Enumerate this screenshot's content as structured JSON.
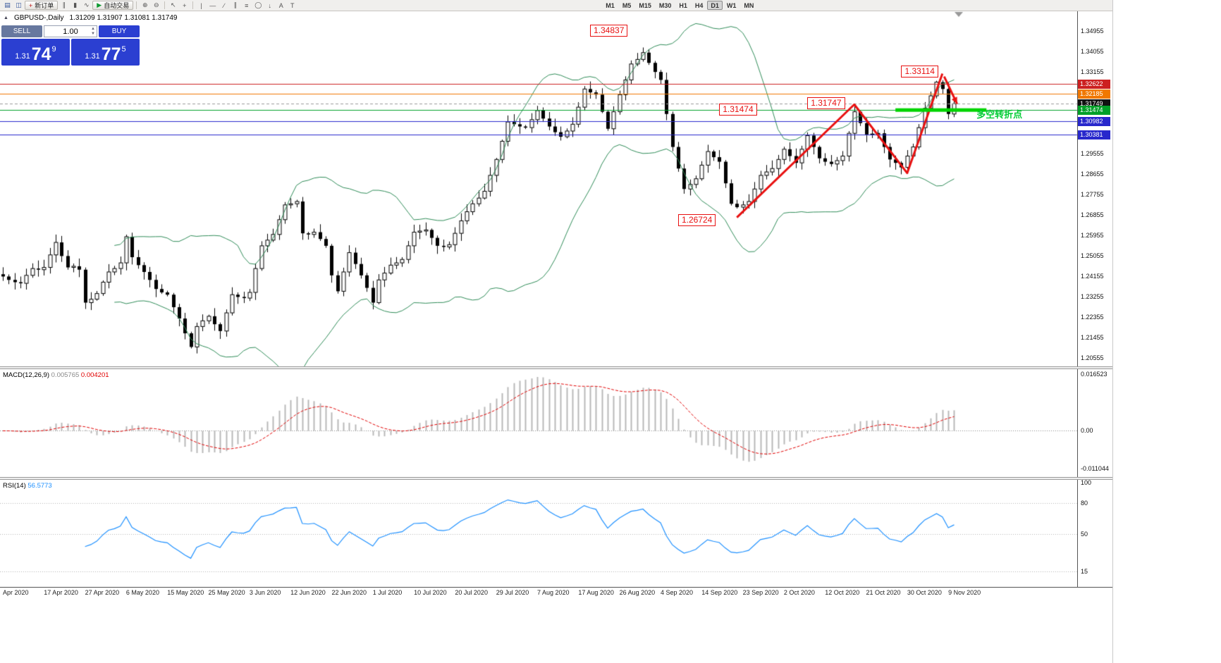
{
  "toolbar": {
    "items": [
      {
        "name": "charts-icon",
        "glyph": "▤",
        "color": "#33569b"
      },
      {
        "name": "profiles-icon",
        "glyph": "◫",
        "color": "#33569b"
      },
      {
        "name": "new-order-button",
        "label": "新订单",
        "glyph": "+",
        "color": "#bb1111",
        "button": true
      },
      {
        "name": "chart-bars-icon",
        "glyph": "∥",
        "color": "#555555"
      },
      {
        "name": "chart-candles-icon",
        "glyph": "▮",
        "color": "#555555"
      },
      {
        "name": "chart-line-icon",
        "glyph": "∿",
        "color": "#555555"
      },
      {
        "name": "autotrading-button",
        "label": "自动交易",
        "glyph": "▶",
        "color": "#0c9a30",
        "button": true
      },
      {
        "sep": true
      },
      {
        "name": "zoom-in-icon",
        "glyph": "⊕",
        "color": "#555555"
      },
      {
        "name": "zoom-out-icon",
        "glyph": "⊖",
        "color": "#555555"
      },
      {
        "sep": true
      },
      {
        "name": "cursor-icon",
        "glyph": "↖",
        "color": "#555555"
      },
      {
        "name": "crosshair-icon",
        "glyph": "+",
        "color": "#555555"
      },
      {
        "sep": true
      },
      {
        "name": "vertical-line-icon",
        "glyph": "|",
        "color": "#555555"
      },
      {
        "name": "horizontal-line-icon",
        "glyph": "—",
        "color": "#555555"
      },
      {
        "name": "trendline-icon",
        "glyph": "∕",
        "color": "#555555"
      },
      {
        "name": "equidistant-channel-icon",
        "glyph": "∥",
        "color": "#555555"
      },
      {
        "name": "fibonacci-icon",
        "glyph": "≡",
        "color": "#555555"
      },
      {
        "name": "shapes-icon",
        "glyph": "◯",
        "color": "#555555"
      },
      {
        "name": "arrows-icon",
        "glyph": "↓",
        "color": "#555555"
      },
      {
        "name": "text-icon",
        "glyph": "A",
        "color": "#555555"
      },
      {
        "name": "text-label-icon",
        "glyph": "T",
        "color": "#555555"
      },
      {
        "spacer": 430
      }
    ],
    "timeframes": [
      "M1",
      "M5",
      "M15",
      "M30",
      "H1",
      "H4",
      "D1",
      "W1",
      "MN"
    ],
    "active_timeframe": "D1"
  },
  "chart_header": {
    "symbol_period": "GBPUSD-,Daily",
    "ohlc": "1.31209 1.31907 1.31081 1.31749"
  },
  "one_click": {
    "sell_label": "SELL",
    "buy_label": "BUY",
    "volume": "1.00",
    "sell_price_small": "1.31",
    "sell_price_big": "74",
    "sell_price_sup": "9",
    "buy_price_small": "1.31",
    "buy_price_big": "77",
    "buy_price_sup": "5"
  },
  "indicators_text": {
    "macd_name": "MACD(12,26,9)",
    "macd_main": "0.005765",
    "macd_signal": "0.004201",
    "rsi_name": "RSI(14)",
    "rsi_value": "56.5773"
  },
  "price_axis": {
    "ticks": [
      "1.34955",
      "1.34055",
      "1.33155",
      "1.32255",
      "1.31355",
      "1.30455",
      "1.29555",
      "1.28655",
      "1.27755",
      "1.26855",
      "1.25955",
      "1.25055",
      "1.24155",
      "1.23255",
      "1.22355",
      "1.21455",
      "1.20555"
    ],
    "labels": [
      {
        "text": "1.32622",
        "value": 1.32622,
        "color": "#cc2020"
      },
      {
        "text": "1.32185",
        "value": 1.32185,
        "color": "#f07800"
      },
      {
        "text": "1.31749",
        "value": 1.31749,
        "color": "#111111"
      },
      {
        "text": "1.31474",
        "value": 1.31474,
        "color": "#00a028"
      },
      {
        "text": "1.30982",
        "value": 1.30982,
        "color": "#2828cc"
      },
      {
        "text": "1.30381",
        "value": 1.30381,
        "color": "#2828cc"
      }
    ]
  },
  "time_axis": {
    "bars_per_label": 7,
    "labels": [
      "Apr 2020",
      "17 Apr 2020",
      "27 Apr 2020",
      "6 May 2020",
      "15 May 2020",
      "25 May 2020",
      "3 Jun 2020",
      "12 Jun 2020",
      "22 Jun 2020",
      "1 Jul 2020",
      "10 Jul 2020",
      "20 Jul 2020",
      "29 Jul 2020",
      "7 Aug 2020",
      "17 Aug 2020",
      "26 Aug 2020",
      "4 Sep 2020",
      "14 Sep 2020",
      "23 Sep 2020",
      "2 Oct 2020",
      "12 Oct 2020",
      "21 Oct 2020",
      "30 Oct 2020",
      "9 Nov 2020"
    ]
  },
  "chart_data": {
    "type": "candlestick",
    "symbol": "GBPUSD-",
    "period": "Daily",
    "price_range": [
      1.20195,
      1.3582
    ],
    "closes": [
      1.2415,
      1.24,
      1.239,
      1.2385,
      1.242,
      1.245,
      1.2445,
      1.2455,
      1.251,
      1.2565,
      1.2505,
      1.2455,
      1.246,
      1.2445,
      1.23,
      1.2315,
      1.234,
      1.239,
      1.2435,
      1.245,
      1.2475,
      1.259,
      1.25,
      1.2465,
      1.2435,
      1.24,
      1.236,
      1.2345,
      1.2335,
      1.228,
      1.223,
      1.2165,
      1.2105,
      1.2195,
      1.222,
      1.224,
      1.2205,
      1.2175,
      1.2255,
      1.2335,
      1.2325,
      1.232,
      1.2345,
      1.245,
      1.255,
      1.2575,
      1.26,
      1.2665,
      1.273,
      1.2735,
      1.2745,
      1.2605,
      1.26,
      1.261,
      1.258,
      1.255,
      1.242,
      1.235,
      1.2435,
      1.252,
      1.247,
      1.242,
      1.2365,
      1.23,
      1.24,
      1.243,
      1.2465,
      1.2475,
      1.249,
      1.255,
      1.261,
      1.2615,
      1.262,
      1.2585,
      1.255,
      1.2545,
      1.2555,
      1.2605,
      1.266,
      1.27,
      1.2735,
      1.276,
      1.279,
      1.286,
      1.293,
      1.301,
      1.3095,
      1.3085,
      1.3075,
      1.307,
      1.3105,
      1.3145,
      1.311,
      1.3075,
      1.305,
      1.303,
      1.3055,
      1.3085,
      1.316,
      1.324,
      1.3225,
      1.3215,
      1.314,
      1.3065,
      1.314,
      1.3215,
      1.328,
      1.335,
      1.337,
      1.34,
      1.3355,
      1.3315,
      1.328,
      1.313,
      1.2985,
      1.289,
      1.28,
      1.282,
      1.2845,
      1.2905,
      1.2965,
      1.294,
      1.292,
      1.2825,
      1.2735,
      1.272,
      1.273,
      1.2745,
      1.28,
      1.286,
      1.2875,
      1.289,
      1.293,
      1.2975,
      1.2945,
      1.2915,
      1.2975,
      1.3035,
      1.2985,
      1.2935,
      1.292,
      1.291,
      1.2925,
      1.2945,
      1.3045,
      1.314,
      1.309,
      1.304,
      1.3042,
      1.3045,
      1.2985,
      1.293,
      1.2915,
      1.2895,
      1.2945,
      1.2985,
      1.307,
      1.3155,
      1.321,
      1.327,
      1.324,
      1.313,
      1.3175
    ],
    "hlines": [
      {
        "value": 1.32622,
        "color": "#cc2020",
        "width": 1
      },
      {
        "value": 1.32185,
        "color": "#f07800",
        "width": 1
      },
      {
        "value": 1.31749,
        "color": "#999999",
        "width": 1,
        "dash": true
      },
      {
        "value": 1.31474,
        "color": "#00a028",
        "width": 1
      },
      {
        "value": 1.30982,
        "color": "#2828cc",
        "width": 1
      },
      {
        "value": 1.30381,
        "color": "#2828cc",
        "width": 1
      }
    ],
    "indicators": {
      "bollinger": {
        "period": 20,
        "deviation": 2,
        "color": "#2e8b57"
      },
      "macd": {
        "fast": 12,
        "slow": 26,
        "signal": 9,
        "range": [
          -0.0135,
          0.018
        ],
        "hist_color": "#b8b8b8",
        "signal_color": "#e00000",
        "axis_labels": [
          {
            "text": "0.016523",
            "value": 0.016523
          },
          {
            "text": "0.00",
            "value": 0
          },
          {
            "text": "-0.011044",
            "value": -0.011044
          }
        ]
      },
      "rsi": {
        "period": 14,
        "range": [
          0,
          102
        ],
        "color": "#1E90FF",
        "levels": [
          80,
          50,
          15
        ],
        "axis_labels": [
          {
            "text": "100",
            "value": 100
          },
          {
            "text": "80",
            "value": 80
          },
          {
            "text": "50",
            "value": 50
          },
          {
            "text": "15",
            "value": 15
          }
        ]
      }
    },
    "annotations": {
      "trend_color": "#e81010",
      "callouts": [
        {
          "text": "1.34837",
          "bar": 100,
          "anchor": 1.3523
        },
        {
          "text": "1.33114",
          "bar": 153,
          "anchor": 1.3343
        },
        {
          "text": "1.31747",
          "bar": 137,
          "anchor": 1.3204
        },
        {
          "text": "1.31474",
          "bar": 122,
          "anchor": 1.3176
        },
        {
          "text": "1.26724",
          "bar": 115,
          "anchor": 1.2689
        }
      ],
      "zigzag": [
        {
          "bar": 125,
          "price": 1.2675
        },
        {
          "bar": 145,
          "price": 1.3172
        },
        {
          "bar": 154,
          "price": 1.287
        },
        {
          "bar": 160,
          "price": 1.3308
        }
      ],
      "arrow": {
        "from": {
          "bar": 160.3,
          "price": 1.3295
        },
        "to": {
          "bar": 162.5,
          "price": 1.3175
        }
      },
      "highlight_line": {
        "bar_start": 152,
        "bar_end": 167.5,
        "price": 1.31474,
        "color": "#00d400"
      },
      "note": {
        "text": "多空转折点",
        "bar": 165.8,
        "anchor": 1.316,
        "color": "#00cc33"
      }
    }
  }
}
